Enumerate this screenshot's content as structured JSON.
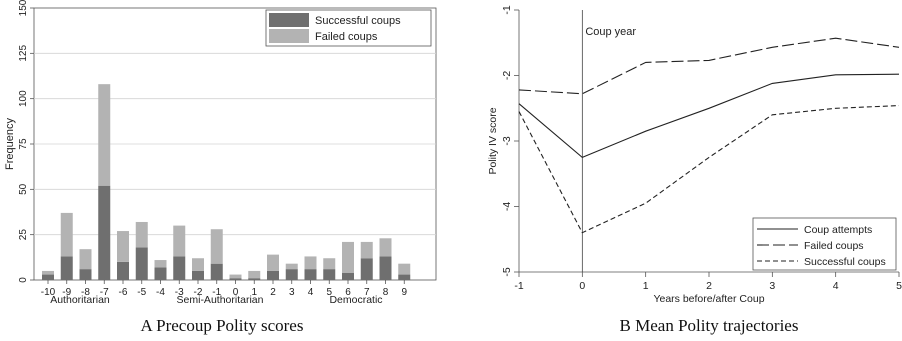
{
  "chart_data": [
    {
      "type": "bar",
      "stacked": true,
      "caption": "A Precoup Polity scores",
      "ylabel": "Frequency",
      "ylim": [
        0,
        150
      ],
      "yticks": [
        0,
        25,
        50,
        75,
        100,
        125,
        150
      ],
      "grid": true,
      "legend_position": "top-right",
      "categories": [
        "-10",
        "-9",
        "-8",
        "-7",
        "-6",
        "-5",
        "-4",
        "-3",
        "-2",
        "-1",
        "0",
        "1",
        "2",
        "3",
        "4",
        "5",
        "6",
        "7",
        "8",
        "9"
      ],
      "category_group_labels": [
        "Authoritarian",
        "Semi-Authoritarian",
        "Democratic"
      ],
      "series": [
        {
          "name": "Successful coups",
          "color": "#6f6f6f",
          "values": [
            3,
            13,
            6,
            52,
            10,
            18,
            7,
            13,
            5,
            9,
            1,
            1,
            5,
            6,
            6,
            6,
            4,
            12,
            13,
            3
          ]
        },
        {
          "name": "Failed coups",
          "color": "#b3b3b3",
          "values": [
            2,
            24,
            11,
            56,
            17,
            14,
            4,
            17,
            7,
            19,
            2,
            4,
            9,
            3,
            7,
            6,
            17,
            9,
            10,
            6
          ]
        }
      ]
    },
    {
      "type": "line",
      "caption": "B Mean Polity trajectories",
      "xlabel": "Years before/after Coup",
      "ylabel": "Polity IV score",
      "xlim": [
        -1,
        5
      ],
      "ylim": [
        -5,
        -1
      ],
      "xticks": [
        -1,
        0,
        1,
        2,
        3,
        4,
        5
      ],
      "yticks": [
        -5,
        -4,
        -3,
        -2,
        -1
      ],
      "annotation": {
        "text": "Coup year",
        "x": 0
      },
      "legend_position": "bottom-right",
      "x": [
        -1,
        0,
        1,
        2,
        3,
        4,
        5
      ],
      "series": [
        {
          "name": "Coup attempts",
          "dash": "solid",
          "values": [
            -2.43,
            -3.25,
            -2.85,
            -2.5,
            -2.12,
            -1.99,
            -1.98
          ]
        },
        {
          "name": "Failed coups",
          "dash": "long",
          "values": [
            -2.22,
            -2.28,
            -1.8,
            -1.77,
            -1.57,
            -1.43,
            -1.57
          ]
        },
        {
          "name": "Successful coups",
          "dash": "short",
          "values": [
            -2.55,
            -4.4,
            -3.95,
            -3.25,
            -2.6,
            -2.5,
            -2.46
          ]
        }
      ]
    }
  ]
}
